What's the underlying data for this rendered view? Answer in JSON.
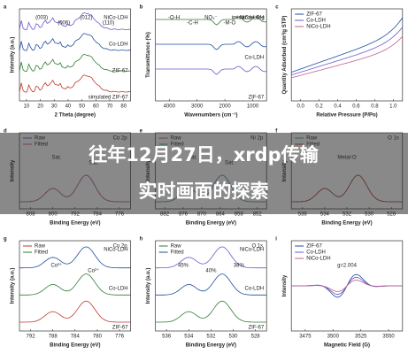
{
  "overlay": {
    "line1": "往年12月27日，xrdp传输",
    "line2": "实时画面的探索"
  },
  "panels": [
    {
      "letter": "a",
      "xlabel": "2 Theta (degree)",
      "ylabel": "Intensity (a.u.)",
      "xticks": [
        "10",
        "20",
        "30",
        "40",
        "50",
        "60",
        "70",
        "80"
      ],
      "labels": [
        "NiCo-LDH",
        "Co-LDH",
        "ZIF-67",
        "simulated ZIF-67"
      ],
      "legend": [],
      "title": "",
      "notes": [
        "(003)",
        "(006)",
        "(012)",
        "(110)"
      ]
    },
    {
      "letter": "b",
      "xlabel": "Wavenumbers (cm⁻¹)",
      "ylabel": "Transmittance (%)",
      "xticks": [
        "4000",
        "3000",
        "2000",
        "1000"
      ],
      "labels": [
        "NiCo-LDH",
        "Co-LDH",
        "ZIF-67"
      ],
      "legend": [],
      "title": "",
      "notes": [
        "-O-H",
        "-C-H",
        "NO₃⁻",
        "-M-O",
        "imidazole ring"
      ]
    },
    {
      "letter": "c",
      "xlabel": "Relative Pressure (P/Po)",
      "ylabel": "Quantity Adsorbed (cm³/g STP)",
      "xticks": [
        "0.0",
        "0.2",
        "0.4",
        "0.6",
        "0.8",
        "1.0"
      ],
      "labels": [],
      "legend": [
        "ZIF-67",
        "Co-LDH",
        "NiCo-LDH"
      ],
      "title": "",
      "notes": []
    },
    {
      "letter": "d",
      "xlabel": "Binding Energy (eV)",
      "ylabel": "Intensity",
      "xticks": [
        "808",
        "800",
        "792",
        "784",
        "776"
      ],
      "labels": [],
      "legend": [
        "Raw",
        "Fitted"
      ],
      "title": "Co 2p",
      "notes": [
        "Sat.",
        "Sat."
      ]
    },
    {
      "letter": "e",
      "xlabel": "Binding Energy (eV)",
      "ylabel": "Intensity",
      "xticks": [
        "882",
        "876",
        "870",
        "864",
        "858",
        "852"
      ],
      "labels": [],
      "legend": [
        "Raw",
        "Fitted"
      ],
      "title": "Ni 2p",
      "notes": [
        "Sat.",
        "Sat."
      ]
    },
    {
      "letter": "f",
      "xlabel": "Binding Energy (eV)",
      "ylabel": "Intensity",
      "xticks": [
        "536",
        "534",
        "532",
        "530",
        "528"
      ],
      "labels": [],
      "legend": [
        "Raw",
        "Fitted"
      ],
      "title": "O 1s",
      "notes": [
        "Metal-O"
      ]
    },
    {
      "letter": "g",
      "xlabel": "Binding Energy (eV)",
      "ylabel": "Intensity (a.u.)",
      "xticks": [
        "792",
        "788",
        "784",
        "780",
        "776"
      ],
      "labels": [
        "NiCo-LDH",
        "Co-LDH",
        "ZIF-67"
      ],
      "legend": [
        "Raw",
        "Fitted"
      ],
      "title": "Co 2p",
      "notes": [
        "Co³⁺",
        "Co²⁺"
      ]
    },
    {
      "letter": "h",
      "xlabel": "Binding Energy (eV)",
      "ylabel": "Intensity (a.u.)",
      "xticks": [
        "536",
        "534",
        "532",
        "530",
        "528"
      ],
      "labels": [
        "NiCo-LDH",
        "Co-LDH",
        "ZIF-67"
      ],
      "legend": [
        "Raw",
        "Fitted"
      ],
      "title": "O 1s",
      "notes": [
        "45%",
        "40%",
        "38%"
      ]
    },
    {
      "letter": "i",
      "xlabel": "Magnetic Field (G)",
      "ylabel": "Intensity",
      "xticks": [
        "3475",
        "3500",
        "3525",
        "3550"
      ],
      "labels": [],
      "legend": [
        "ZIF-67",
        "Co-LDH",
        "NiCo-LDH"
      ],
      "title": "",
      "notes": [
        "g=2.004"
      ]
    }
  ]
}
